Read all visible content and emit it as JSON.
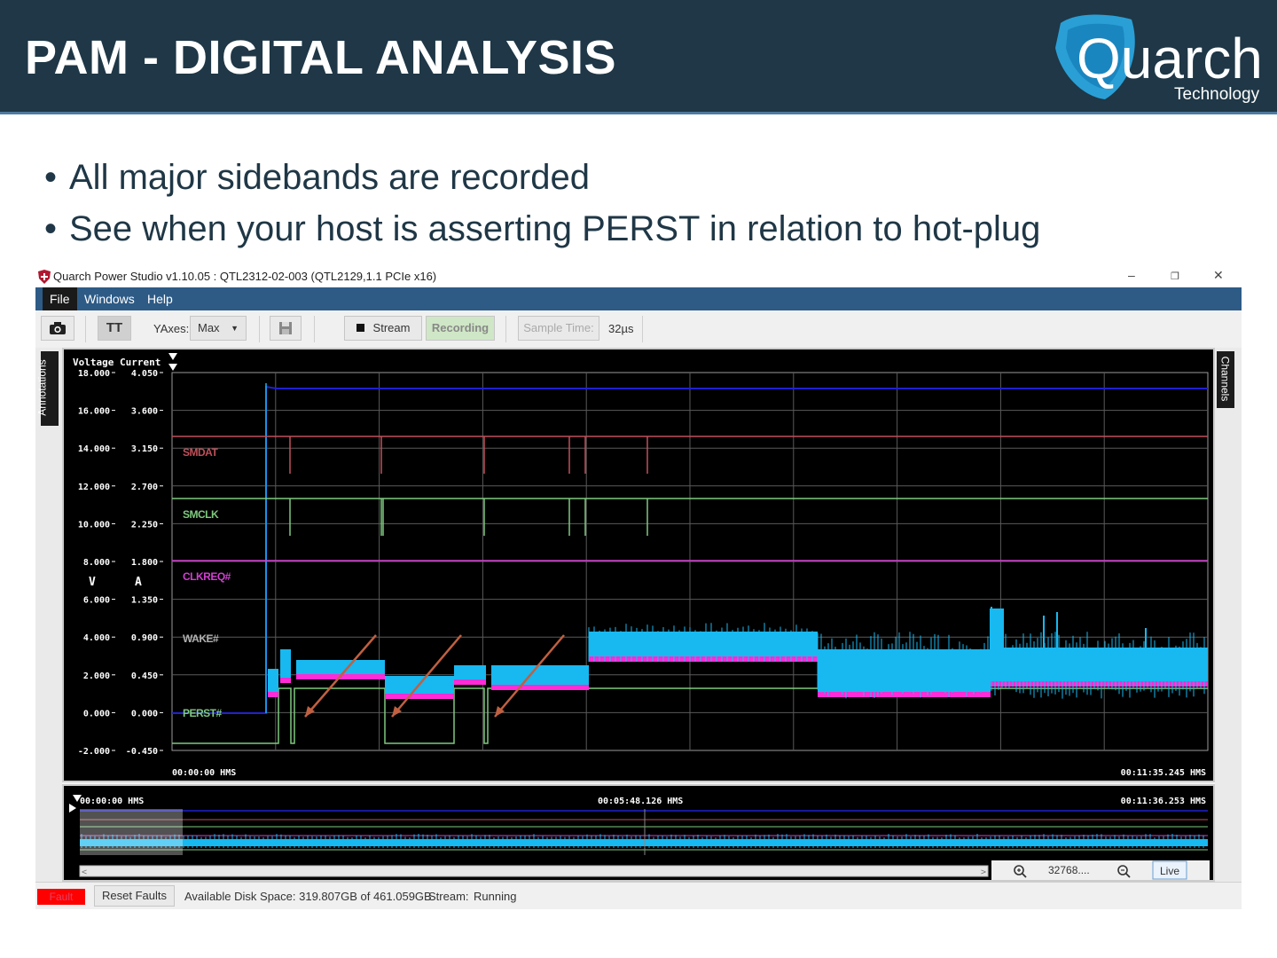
{
  "slide": {
    "title": "PAM - DIGITAL ANALYSIS",
    "logo": {
      "name": "Quarch",
      "sub": "Technology"
    },
    "bullets": [
      "All major sidebands are recorded",
      "See when your host is asserting PERST in relation to hot-plug"
    ]
  },
  "window": {
    "title": "Quarch Power Studio v1.10.05 : QTL2312-02-003 (QTL2129,1.1 PCIe x16)",
    "controls": {
      "minimize": "–",
      "restore": "❐",
      "close": "✕"
    }
  },
  "menu": {
    "items": [
      "File",
      "Windows",
      "Help"
    ],
    "selected": "File"
  },
  "toolbar": {
    "camera_icon": "camera-icon",
    "text_button": "TT",
    "yaxes_label": "YAxes:",
    "yaxes_value": "Max",
    "save_icon": "save-icon",
    "stream_label": "Stream",
    "recording_label": "Recording",
    "sample_time_label": "Sample Time:",
    "sample_time_value": "32µs"
  },
  "side_tabs": {
    "left": "Annotations",
    "right": "Channels"
  },
  "plot": {
    "voltage_header": "Voltage",
    "current_header": "Current",
    "voltage_unit": "V",
    "current_unit": "A",
    "voltage_ticks": [
      "18.000",
      "16.000",
      "14.000",
      "12.000",
      "10.000",
      "8.000",
      "6.000",
      "4.000",
      "2.000",
      "0.000",
      "-2.000"
    ],
    "current_ticks": [
      "4.050",
      "3.600",
      "3.150",
      "2.700",
      "2.250",
      "1.800",
      "1.350",
      "0.900",
      "0.450",
      "0.000",
      "-0.450"
    ],
    "time_start": "00:00:00 HMS",
    "time_end": "00:11:35.245 HMS",
    "channels": [
      {
        "name": "SMDAT",
        "color": "#c0505a"
      },
      {
        "name": "SMCLK",
        "color": "#7fc97f"
      },
      {
        "name": "CLKREQ#",
        "color": "#d040d0"
      },
      {
        "name": "WAKE#",
        "color": "#b0b0b0"
      },
      {
        "name": "PERST#",
        "color": "#7fc97f"
      }
    ],
    "colors": {
      "voltage": "#2020d0",
      "current": "#18b8f0",
      "current_alt": "#ff2bd6",
      "arrow": "#c06040"
    }
  },
  "overview": {
    "time_start": "00:00:00 HMS",
    "time_mid": "00:05:48.126 HMS",
    "time_end": "00:11:36.253 HMS",
    "zoom_value": "32768....",
    "live_label": "Live"
  },
  "status": {
    "fault_label": "Fault",
    "reset_label": "Reset Faults",
    "disk_space": "Available Disk Space: 319.807GB of 461.059GB",
    "stream_label": "Stream:",
    "stream_value": "Running"
  }
}
